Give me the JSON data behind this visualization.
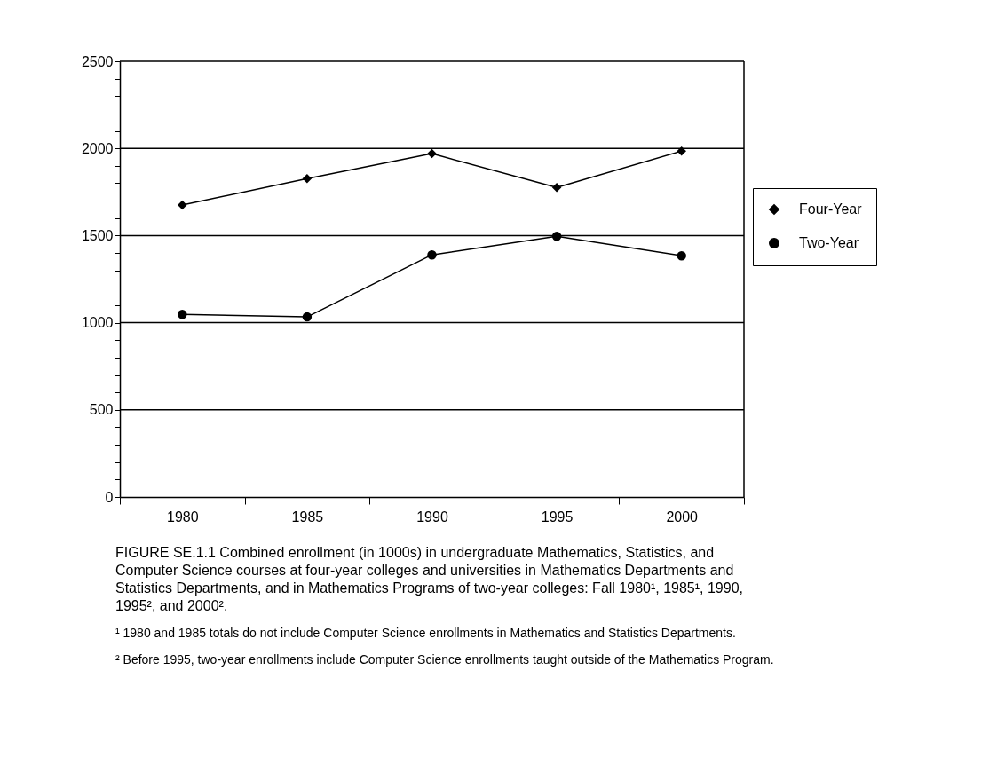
{
  "chart_data": {
    "type": "line",
    "categories": [
      "1980",
      "1985",
      "1990",
      "1995",
      "2000"
    ],
    "series": [
      {
        "name": "Four-Year",
        "color": "#000000",
        "marker": "diamond",
        "values": [
          1675,
          1827,
          1970,
          1776,
          1985
        ]
      },
      {
        "name": "Two-Year",
        "color": "#000000",
        "marker": "circle",
        "values": [
          1048,
          1033,
          1389,
          1496,
          1384
        ]
      }
    ],
    "ylim": [
      0,
      2500
    ],
    "yticks": [
      0,
      {
        "value": 100,
        "label": null
      },
      {
        "value": 200,
        "label": null
      },
      {
        "value": 300,
        "label": null
      },
      {
        "value": 400,
        "label": null
      },
      500,
      {
        "value": 600,
        "label": null
      },
      {
        "value": 700,
        "label": null
      },
      {
        "value": 800,
        "label": null
      },
      {
        "value": 900,
        "label": null
      },
      1000,
      {
        "value": 1100,
        "label": null
      },
      {
        "value": 1200,
        "label": null
      },
      {
        "value": 1300,
        "label": null
      },
      {
        "value": 1400,
        "label": null
      },
      1500,
      {
        "value": 1600,
        "label": null
      },
      {
        "value": 1700,
        "label": null
      },
      {
        "value": 1800,
        "label": null
      },
      {
        "value": 1900,
        "label": null
      },
      2000,
      {
        "value": 2100,
        "label": null
      },
      {
        "value": 2200,
        "label": null
      },
      {
        "value": 2300,
        "label": null
      },
      {
        "value": 2400,
        "label": null
      },
      2500
    ],
    "grid": "y",
    "legend": "right",
    "line_style": "solid",
    "annotations": [
      "FIGURE SE.1.1   Combined enrollment (in 1000s) in undergraduate Mathematics, Statistics, and Computer Science courses at four-year colleges and universities in Mathematics Departments and Statistics Departments, and in Mathematics Programs of two-year colleges: Fall 1980¹, 1985¹, 1990, 1995², and 2000².",
      "¹ 1980 and 1985 totals do not include Computer Science enrollments in Mathematics and Statistics Departments.",
      "² Before 1995, two-year enrollments include Computer Science enrollments taught outside of the Mathematics Program."
    ]
  }
}
